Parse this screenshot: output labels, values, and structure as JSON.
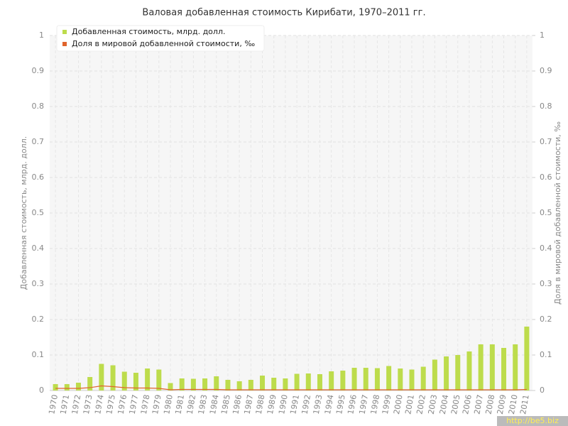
{
  "chart_data": {
    "type": "bar-line",
    "title": "Валовая добавленная стоимость Кирибати, 1970–2011 гг.",
    "y_label": "Добавленная стоимость, млрд. долл.",
    "y2_label": "Доля в мировой добавленной стоимости, ‰",
    "watermark": "http://be5.biz",
    "categories": [
      "1970",
      "1971",
      "1972",
      "1973",
      "1974",
      "1975",
      "1976",
      "1977",
      "1978",
      "1979",
      "1980",
      "1981",
      "1982",
      "1983",
      "1984",
      "1985",
      "1986",
      "1987",
      "1988",
      "1989",
      "1990",
      "1991",
      "1992",
      "1993",
      "1994",
      "1995",
      "1996",
      "1997",
      "1998",
      "1999",
      "2000",
      "2001",
      "2002",
      "2003",
      "2004",
      "2005",
      "2006",
      "2007",
      "2008",
      "2009",
      "2010",
      "2011"
    ],
    "series": [
      {
        "name": "Добавленная стоимость, млрд. долл.",
        "type": "bar",
        "color": "#bddc4c",
        "values": [
          0.018,
          0.018,
          0.022,
          0.038,
          0.075,
          0.071,
          0.053,
          0.05,
          0.062,
          0.059,
          0.021,
          0.034,
          0.033,
          0.034,
          0.04,
          0.03,
          0.026,
          0.03,
          0.042,
          0.036,
          0.034,
          0.047,
          0.048,
          0.046,
          0.054,
          0.056,
          0.064,
          0.064,
          0.063,
          0.069,
          0.062,
          0.059,
          0.067,
          0.087,
          0.096,
          0.1,
          0.11,
          0.13,
          0.13,
          0.12,
          0.13,
          0.18
        ]
      },
      {
        "name": "Доля в мировой добавленной стоимости, ‰",
        "type": "line",
        "axis": "y2",
        "color": "#e0642c",
        "values": [
          0.006,
          0.006,
          0.006,
          0.008,
          0.013,
          0.011,
          0.008,
          0.007,
          0.007,
          0.006,
          0.002,
          0.003,
          0.003,
          0.003,
          0.003,
          0.002,
          0.002,
          0.002,
          0.002,
          0.002,
          0.002,
          0.002,
          0.002,
          0.002,
          0.002,
          0.002,
          0.002,
          0.002,
          0.002,
          0.002,
          0.002,
          0.002,
          0.002,
          0.002,
          0.002,
          0.002,
          0.002,
          0.002,
          0.002,
          0.002,
          0.002,
          0.003
        ]
      }
    ],
    "ylim": [
      0,
      1
    ],
    "yticks": [
      0,
      0.1,
      0.2,
      0.3,
      0.4,
      0.5,
      0.6,
      0.7,
      0.8,
      0.9,
      1
    ],
    "y2lim": [
      0,
      1
    ],
    "y2ticks": [
      0,
      0.1,
      0.2,
      0.3,
      0.4,
      0.5,
      0.6,
      0.7,
      0.8,
      0.9,
      1
    ],
    "grid": true,
    "legend": "top-left"
  }
}
